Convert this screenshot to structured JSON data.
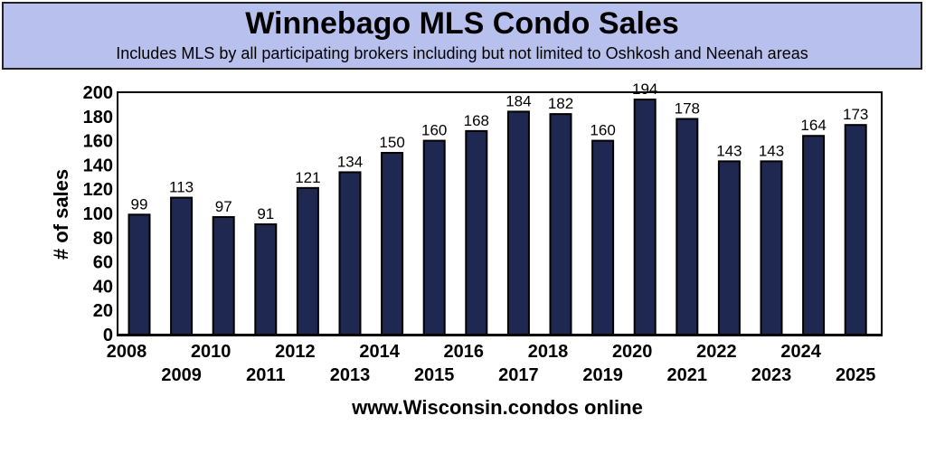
{
  "chart_data": {
    "type": "bar",
    "title": "Winnebago MLS Condo Sales",
    "subtitle": "Includes MLS by all participating brokers including but not limited to Oshkosh and Neenah areas",
    "xlabel": "www.Wisconsin.condos online",
    "ylabel": "# of sales",
    "ylim": [
      0,
      200
    ],
    "yticks": [
      0,
      20,
      40,
      60,
      80,
      100,
      120,
      140,
      160,
      180,
      200
    ],
    "grid": false,
    "categories": [
      "2008",
      "2009",
      "2010",
      "2011",
      "2012",
      "2013",
      "2014",
      "2015",
      "2016",
      "2017",
      "2018",
      "2019",
      "2020",
      "2021",
      "2022",
      "2023",
      "2024",
      "2025"
    ],
    "values": [
      99,
      113,
      97,
      91,
      121,
      134,
      150,
      160,
      168,
      184,
      182,
      160,
      194,
      178,
      143,
      143,
      164,
      173
    ],
    "colors": {
      "bar": "#1f2850",
      "header_bg": "#b8c0ee"
    }
  }
}
